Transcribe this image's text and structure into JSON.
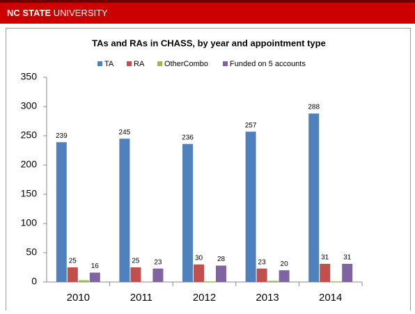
{
  "header": {
    "brand_bold": "NC STATE",
    "brand_rest": "UNIVERSITY"
  },
  "chart_data": {
    "type": "bar",
    "title": "TAs and RAs in CHASS, by year and appointment type",
    "categories": [
      "2010",
      "2011",
      "2012",
      "2013",
      "2014"
    ],
    "series": [
      {
        "name": "TA",
        "color": "#4f81bd",
        "values": [
          239,
          245,
          236,
          257,
          288
        ],
        "data_labels": true
      },
      {
        "name": "RA",
        "color": "#c0504d",
        "values": [
          25,
          25,
          30,
          23,
          31
        ],
        "data_labels": true
      },
      {
        "name": "OtherCombo",
        "color": "#9bbb59",
        "values": [
          3,
          0,
          1,
          2,
          1
        ],
        "data_labels": false
      },
      {
        "name": "Funded on 5 accounts",
        "color": "#8064a2",
        "values": [
          16,
          23,
          28,
          20,
          31
        ],
        "data_labels": true
      }
    ],
    "ylim": [
      0,
      350
    ],
    "yticks": [
      0,
      50,
      100,
      150,
      200,
      250,
      300,
      350
    ],
    "grid": false,
    "legend": "top"
  }
}
